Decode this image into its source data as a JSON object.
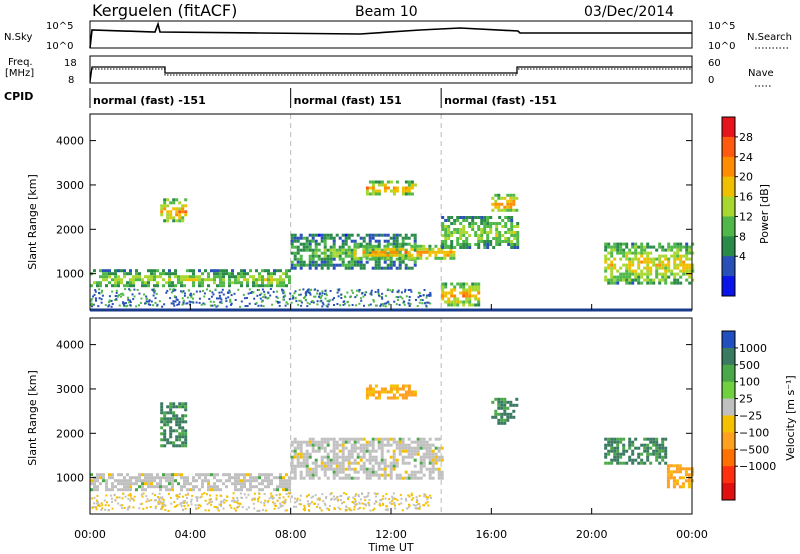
{
  "header": {
    "station": "Kerguelen (fitACF)",
    "beam": "Beam 10",
    "date": "03/Dec/2014"
  },
  "top_panels": {
    "nsky_label": "N.Sky",
    "nsky_ticks": [
      "10^5",
      "10^0"
    ],
    "nsearch_label": "N.Search",
    "freq_label_1": "Freq.",
    "freq_label_2": "[MHz]",
    "freq_ticks": [
      "18",
      "8"
    ],
    "nave_label": "Nave",
    "nave_ticks": [
      "60",
      "0"
    ],
    "cpid_label": "CPID",
    "cpid_segments": [
      {
        "label": "normal (fast) -151",
        "start_h": 0,
        "end_h": 8
      },
      {
        "label": "normal (fast) 151",
        "start_h": 8,
        "end_h": 14
      },
      {
        "label": "normal (fast) -151",
        "start_h": 14,
        "end_h": 24
      }
    ]
  },
  "axes": {
    "ylabel": "Slant Range [km]",
    "xlabel": "Time UT",
    "xticks": [
      "00:00",
      "04:00",
      "08:00",
      "12:00",
      "16:00",
      "20:00",
      "00:00"
    ],
    "yticks": [
      "1000",
      "2000",
      "3000",
      "4000"
    ]
  },
  "power_colorbar": {
    "label": "Power [dB]",
    "ticks": [
      "28",
      "24",
      "20",
      "16",
      "12",
      "8",
      "4"
    ],
    "colors": [
      "#e8141c",
      "#ff5a10",
      "#ff8c00",
      "#f0c000",
      "#a8d830",
      "#50b848",
      "#2a8a4a",
      "#2850b8",
      "#0a14e8"
    ]
  },
  "velocity_colorbar": {
    "label": "Velocity [m s⁻¹]",
    "ticks": [
      "1000",
      "500",
      "100",
      "25",
      "−25",
      "−100",
      "−500",
      "−1000"
    ],
    "colors": [
      "#2050c0",
      "#3a7a60",
      "#4aa848",
      "#70d040",
      "#c0c0c0",
      "#f5c000",
      "#ffa020",
      "#ff7000",
      "#ff3010",
      "#e01010"
    ]
  },
  "chart_data": [
    {
      "type": "heatmap",
      "title": "",
      "variable": "Power [dB]",
      "xlabel": "Time UT",
      "ylabel": "Slant Range [km]",
      "xlim_hours": [
        0,
        24
      ],
      "ylim_km": [
        180,
        4600
      ],
      "regions": [
        {
          "t0": 0.0,
          "t1": 8.0,
          "r0": 700,
          "r1": 1100,
          "level": 16
        },
        {
          "t0": 2.8,
          "t1": 3.8,
          "r0": 2200,
          "r1": 2700,
          "level": 24
        },
        {
          "t0": 8.0,
          "t1": 13.0,
          "r0": 1100,
          "r1": 1900,
          "level": 12
        },
        {
          "t0": 10.5,
          "t1": 14.5,
          "r0": 1350,
          "r1": 1650,
          "level": 24
        },
        {
          "t0": 11.0,
          "t1": 13.0,
          "r0": 2800,
          "r1": 3100,
          "level": 24
        },
        {
          "t0": 14.0,
          "t1": 17.0,
          "r0": 1600,
          "r1": 2300,
          "level": 16
        },
        {
          "t0": 16.0,
          "t1": 17.0,
          "r0": 2400,
          "r1": 2800,
          "level": 24
        },
        {
          "t0": 14.0,
          "t1": 15.5,
          "r0": 300,
          "r1": 800,
          "level": 24
        },
        {
          "t0": 20.5,
          "t1": 24.0,
          "r0": 800,
          "r1": 1700,
          "level": 20
        }
      ]
    },
    {
      "type": "heatmap",
      "title": "",
      "variable": "Velocity [m s⁻¹]",
      "xlabel": "Time UT",
      "ylabel": "Slant Range [km]",
      "xlim_hours": [
        0,
        24
      ],
      "ylim_km": [
        180,
        4600
      ],
      "regions": [
        {
          "t0": 0.0,
          "t1": 8.0,
          "r0": 700,
          "r1": 1100,
          "velocity": 0
        },
        {
          "t0": 2.8,
          "t1": 3.8,
          "r0": 1700,
          "r1": 2700,
          "velocity": 100
        },
        {
          "t0": 8.0,
          "t1": 14.0,
          "r0": 1000,
          "r1": 1900,
          "velocity": 0
        },
        {
          "t0": 11.0,
          "t1": 13.0,
          "r0": 2800,
          "r1": 3100,
          "velocity": -100
        },
        {
          "t0": 16.0,
          "t1": 17.0,
          "r0": 2200,
          "r1": 2800,
          "velocity": 100
        },
        {
          "t0": 20.5,
          "t1": 23.0,
          "r0": 1300,
          "r1": 1900,
          "velocity": 100
        },
        {
          "t0": 23.0,
          "t1": 24.0,
          "r0": 800,
          "r1": 1300,
          "velocity": -100
        }
      ]
    }
  ]
}
